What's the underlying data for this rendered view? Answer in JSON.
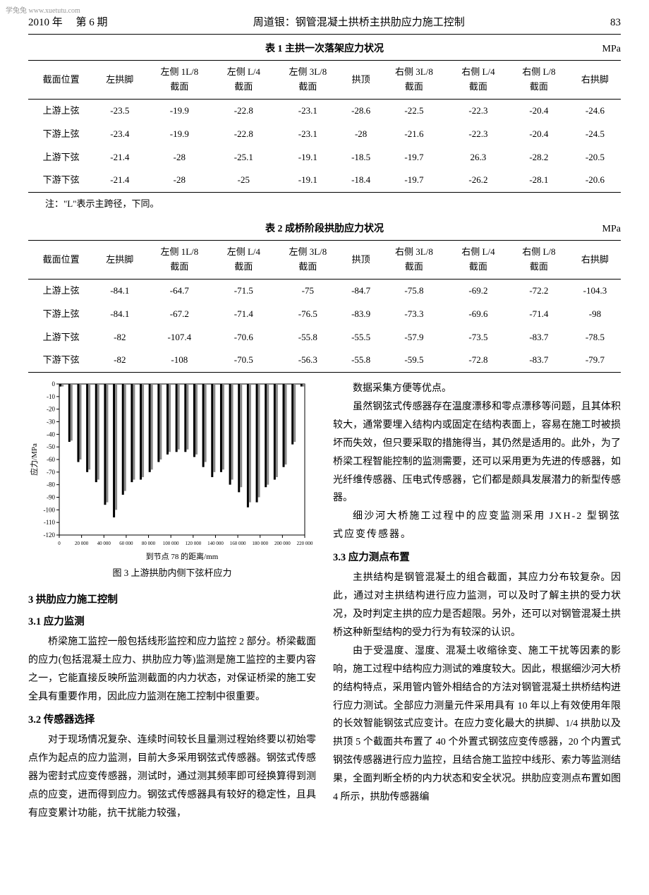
{
  "watermark": "学兔兔 www.xuetutu.com",
  "header": {
    "left_year": "2010 年",
    "left_issue": "第 6 期",
    "center": "周道银：钢管混凝土拱桥主拱肋应力施工控制",
    "right_page": "83"
  },
  "table1": {
    "title": "表 1  主拱一次落架应力状况",
    "unit": "MPa",
    "columns": [
      "截面位置",
      "左拱脚",
      "左侧 1L/8\n截面",
      "左侧 L/4\n截面",
      "左侧 3L/8\n截面",
      "拱顶",
      "右侧 3L/8\n截面",
      "右侧 L/4\n截面",
      "右侧 L/8\n截面",
      "右拱脚"
    ],
    "rows": [
      [
        "上游上弦",
        "-23.5",
        "-19.9",
        "-22.8",
        "-23.1",
        "-28.6",
        "-22.5",
        "-22.3",
        "-20.4",
        "-24.6"
      ],
      [
        "下游上弦",
        "-23.4",
        "-19.9",
        "-22.8",
        "-23.1",
        "-28",
        "-21.6",
        "-22.3",
        "-20.4",
        "-24.5"
      ],
      [
        "上游下弦",
        "-21.4",
        "-28",
        "-25.1",
        "-19.1",
        "-18.5",
        "-19.7",
        "26.3",
        "-28.2",
        "-20.5"
      ],
      [
        "下游下弦",
        "-21.4",
        "-28",
        "-25",
        "-19.1",
        "-18.4",
        "-19.7",
        "-26.2",
        "-28.1",
        "-20.6"
      ]
    ],
    "note": "注：\"L\"表示主跨径，下同。"
  },
  "table2": {
    "title": "表 2  成桥阶段拱肋应力状况",
    "unit": "MPa",
    "columns": [
      "截面位置",
      "左拱脚",
      "左侧 1L/8\n截面",
      "左侧 L/4\n截面",
      "左侧 3L/8\n截面",
      "拱顶",
      "右侧 3L/8\n截面",
      "右侧 L/4\n截面",
      "右侧 L/8\n截面",
      "右拱脚"
    ],
    "rows": [
      [
        "上游上弦",
        "-84.1",
        "-64.7",
        "-71.5",
        "-75",
        "-84.7",
        "-75.8",
        "-69.2",
        "-72.2",
        "-104.3"
      ],
      [
        "下游上弦",
        "-84.1",
        "-67.2",
        "-71.4",
        "-76.5",
        "-83.9",
        "-73.3",
        "-69.6",
        "-71.4",
        "-98"
      ],
      [
        "上游下弦",
        "-82",
        "-107.4",
        "-70.6",
        "-55.8",
        "-55.5",
        "-57.9",
        "-73.5",
        "-83.7",
        "-78.5"
      ],
      [
        "下游下弦",
        "-82",
        "-108",
        "-70.5",
        "-56.3",
        "-55.8",
        "-59.5",
        "-72.8",
        "-83.7",
        "-79.7"
      ]
    ]
  },
  "chart": {
    "type": "bar",
    "caption": "图 3  上游拱肋内侧下弦杆应力",
    "xlabel": "到节点 78 的距离/mm",
    "ylabel": "应力/MPa",
    "ylim": [
      -120,
      0
    ],
    "ytick_step": 10,
    "xlim": [
      0,
      220000
    ],
    "xtick_step": 20000,
    "xtick_labels": [
      "0",
      "20 000",
      "40 000",
      "60 000",
      "80 000",
      "100 000",
      "120 000",
      "140 000",
      "160 000",
      "180 000",
      "200 000",
      "220 000"
    ],
    "background_color": "#ffffff",
    "axis_color": "#000000",
    "grid_color": "#000000",
    "bar_colors": [
      "#000000",
      "#8a8a8a"
    ],
    "groups": [
      {
        "x": 2000,
        "v1": -2,
        "v2": -2
      },
      {
        "x": 10000,
        "v1": -46,
        "v2": -45
      },
      {
        "x": 18000,
        "v1": -62,
        "v2": -60
      },
      {
        "x": 26000,
        "v1": -70,
        "v2": -68
      },
      {
        "x": 34000,
        "v1": -78,
        "v2": -76
      },
      {
        "x": 42000,
        "v1": -96,
        "v2": -94
      },
      {
        "x": 50000,
        "v1": -106,
        "v2": -100
      },
      {
        "x": 58000,
        "v1": -88,
        "v2": -85
      },
      {
        "x": 66000,
        "v1": -78,
        "v2": -76
      },
      {
        "x": 74000,
        "v1": -76,
        "v2": -74
      },
      {
        "x": 82000,
        "v1": -70,
        "v2": -68
      },
      {
        "x": 90000,
        "v1": -62,
        "v2": -60
      },
      {
        "x": 98000,
        "v1": -56,
        "v2": -54
      },
      {
        "x": 106000,
        "v1": -54,
        "v2": -52
      },
      {
        "x": 114000,
        "v1": -54,
        "v2": -52
      },
      {
        "x": 122000,
        "v1": -58,
        "v2": -56
      },
      {
        "x": 130000,
        "v1": -66,
        "v2": -62
      },
      {
        "x": 138000,
        "v1": -74,
        "v2": -70
      },
      {
        "x": 146000,
        "v1": -70,
        "v2": -68
      },
      {
        "x": 154000,
        "v1": -80,
        "v2": -76
      },
      {
        "x": 162000,
        "v1": -86,
        "v2": -82
      },
      {
        "x": 170000,
        "v1": -98,
        "v2": -94
      },
      {
        "x": 178000,
        "v1": -94,
        "v2": -90
      },
      {
        "x": 186000,
        "v1": -82,
        "v2": -80
      },
      {
        "x": 194000,
        "v1": -76,
        "v2": -74
      },
      {
        "x": 202000,
        "v1": -66,
        "v2": -64
      },
      {
        "x": 210000,
        "v1": -48,
        "v2": -46
      },
      {
        "x": 218000,
        "v1": -2,
        "v2": -2
      }
    ]
  },
  "left_col": {
    "h1": "3  拱肋应力施工控制",
    "h2": "3.1  应力监测",
    "p1": "桥梁施工监控一般包括线形监控和应力监控 2 部分。桥梁截面的应力(包括混凝土应力、拱肋应力等)监测是施工监控的主要内容之一，它能直接反映所监测截面的内力状态，对保证桥梁的施工安全具有重要作用，因此应力监测在施工控制中很重要。",
    "h3": "3.2  传感器选择",
    "p2": "对于现场情况复杂、连续时间较长且量测过程始终要以初始零点作为起点的应力监测，目前大多采用钢弦式传感器。钢弦式传感器为密封式应变传感器，测试时，通过测其频率即可经换算得到测点的应变，进而得到应力。钢弦式传感器具有较好的稳定性，且具有应变累计功能，抗干扰能力较强，"
  },
  "right_col": {
    "p1": "数据采集方便等优点。",
    "p2": "虽然钢弦式传感器存在温度漂移和零点漂移等问题，且其体积较大，通常要埋入结构内或固定在结构表面上，容易在施工时被损坏而失效，但只要采取的措施得当，其仍然是适用的。此外，为了桥梁工程智能控制的监测需要，还可以采用更为先进的传感器，如光纤维传感器、压电式传感器，它们都是颇具发展潜力的新型传感器。",
    "p3": "细沙河大桥施工过程中的应变监测采用 JXH-2 型钢弦式应变传感器。",
    "h1": "3.3  应力测点布置",
    "p4": "主拱结构是钢管混凝土的组合截面，其应力分布较复杂。因此，通过对主拱结构进行应力监测，可以及时了解主拱的受力状况，及时判定主拱的应力是否超限。另外，还可以对钢管混凝土拱桥这种新型结构的受力行为有较深的认识。",
    "p5": "由于受温度、湿度、混凝土收缩徐变、施工干扰等因素的影响，施工过程中结构应力测试的难度较大。因此，根据细沙河大桥的结构特点，采用管内管外相结合的方法对钢管混凝土拱桥结构进行应力测试。全部应力测量元件采用具有 10 年以上有效使用年限的长效智能钢弦式应变计。在应力变化最大的拱脚、1/4 拱肋以及拱顶 5 个截面共布置了 40 个外置式钢弦应变传感器，20 个内置式钢弦传感器进行应力监控，且结合施工监控中线形、索力等监测结果，全面判断全桥的内力状态和安全状况。拱肋应变测点布置如图 4 所示，拱肋传感器编"
  }
}
